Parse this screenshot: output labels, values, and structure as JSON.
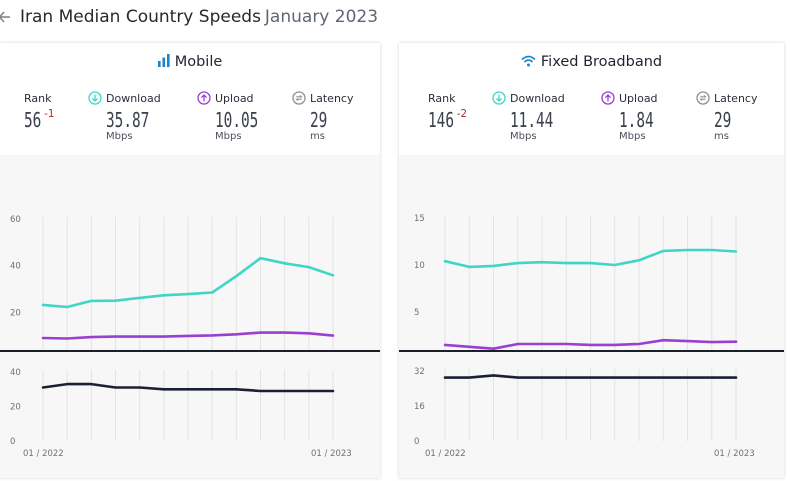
{
  "header": {
    "title": "Iran Median Country Speeds",
    "date": "January 2023"
  },
  "colors": {
    "download": "#3fd6c6",
    "upload": "#9a3fd0",
    "latency": "#1b2135",
    "grid": "#e3e3e3",
    "rank_change": "#c8201e",
    "accent": "#1e84c8"
  },
  "panels": [
    {
      "id": "mobile",
      "title": "Mobile",
      "icon": "signal-bars-icon",
      "rank": {
        "label": "Rank",
        "value": "56",
        "change": "-1"
      },
      "download": {
        "label": "Download",
        "value": "35.87",
        "unit": "Mbps",
        "icon": "download-icon"
      },
      "upload": {
        "label": "Upload",
        "value": "10.05",
        "unit": "Mbps",
        "icon": "upload-icon"
      },
      "latency": {
        "label": "Latency",
        "value": "29",
        "unit": "ms",
        "icon": "latency-icon"
      }
    },
    {
      "id": "fixed",
      "title": "Fixed Broadband",
      "icon": "wifi-icon",
      "rank": {
        "label": "Rank",
        "value": "146",
        "change": "-2"
      },
      "download": {
        "label": "Download",
        "value": "11.44",
        "unit": "Mbps",
        "icon": "download-icon"
      },
      "upload": {
        "label": "Upload",
        "value": "1.84",
        "unit": "Mbps",
        "icon": "upload-icon"
      },
      "latency": {
        "label": "Latency",
        "value": "29",
        "unit": "ms",
        "icon": "latency-icon"
      }
    }
  ],
  "chart_data": [
    {
      "type": "line",
      "panel": "mobile",
      "metric": "speed",
      "x": [
        "01/2022",
        "02/2022",
        "03/2022",
        "04/2022",
        "05/2022",
        "06/2022",
        "07/2022",
        "08/2022",
        "09/2022",
        "10/2022",
        "11/2022",
        "12/2022",
        "01/2023"
      ],
      "x_tick_labels": [
        "01 / 2022",
        "01 / 2023"
      ],
      "y_ticks": [
        0,
        20,
        40,
        60
      ],
      "ylim": [
        0,
        60
      ],
      "grid": true,
      "series": [
        {
          "name": "Download",
          "values": [
            23.2,
            22.3,
            24.9,
            25.0,
            26.2,
            27.3,
            27.8,
            28.5,
            35.5,
            43.2,
            41.0,
            39.4,
            35.87
          ]
        },
        {
          "name": "Upload",
          "values": [
            9.0,
            8.8,
            9.4,
            9.6,
            9.6,
            9.6,
            9.9,
            10.1,
            10.6,
            11.3,
            11.3,
            11.0,
            10.05
          ]
        }
      ]
    },
    {
      "type": "line",
      "panel": "mobile",
      "metric": "latency",
      "x": [
        "01/2022",
        "02/2022",
        "03/2022",
        "04/2022",
        "05/2022",
        "06/2022",
        "07/2022",
        "08/2022",
        "09/2022",
        "10/2022",
        "11/2022",
        "12/2022",
        "01/2023"
      ],
      "x_tick_labels": [
        "01 / 2022",
        "01 / 2023"
      ],
      "y_ticks": [
        0,
        20,
        40
      ],
      "ylim": [
        0,
        40
      ],
      "grid": true,
      "series": [
        {
          "name": "Latency",
          "values": [
            31,
            33,
            33,
            31,
            31,
            30,
            30,
            30,
            30,
            29,
            29,
            29,
            29
          ]
        }
      ]
    },
    {
      "type": "line",
      "panel": "fixed",
      "metric": "speed",
      "x": [
        "01/2022",
        "02/2022",
        "03/2022",
        "04/2022",
        "05/2022",
        "06/2022",
        "07/2022",
        "08/2022",
        "09/2022",
        "10/2022",
        "11/2022",
        "12/2022",
        "01/2023"
      ],
      "x_tick_labels": [
        "01 / 2022",
        "01 / 2023"
      ],
      "y_ticks": [
        0,
        5,
        10,
        15
      ],
      "ylim": [
        0,
        15
      ],
      "grid": true,
      "series": [
        {
          "name": "Download",
          "values": [
            10.4,
            9.8,
            9.9,
            10.2,
            10.3,
            10.2,
            10.2,
            10.0,
            10.5,
            11.5,
            11.6,
            11.6,
            11.44
          ]
        },
        {
          "name": "Upload",
          "values": [
            1.5,
            1.3,
            1.1,
            1.6,
            1.6,
            1.6,
            1.5,
            1.5,
            1.6,
            2.0,
            1.9,
            1.8,
            1.84
          ]
        }
      ]
    },
    {
      "type": "line",
      "panel": "fixed",
      "metric": "latency",
      "x": [
        "01/2022",
        "02/2022",
        "03/2022",
        "04/2022",
        "05/2022",
        "06/2022",
        "07/2022",
        "08/2022",
        "09/2022",
        "10/2022",
        "11/2022",
        "12/2022",
        "01/2023"
      ],
      "x_tick_labels": [
        "01 / 2022",
        "01 / 2023"
      ],
      "y_ticks": [
        0,
        16,
        32
      ],
      "ylim": [
        0,
        32
      ],
      "grid": true,
      "series": [
        {
          "name": "Latency",
          "values": [
            29,
            29,
            30,
            29,
            29,
            29,
            29,
            29,
            29,
            29,
            29,
            29,
            29
          ]
        }
      ]
    }
  ]
}
